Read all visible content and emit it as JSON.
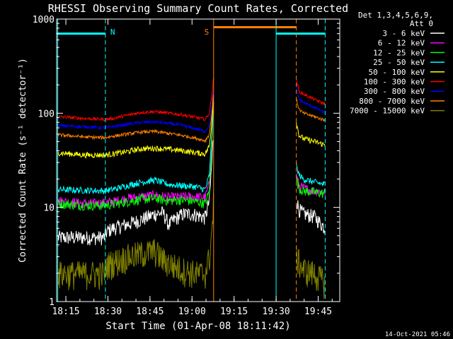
{
  "chart_data": {
    "type": "line",
    "title": "RHESSI Observing Summary Count Rates, Corrected",
    "xlabel": "Start Time (01-Apr-08 18:11:42)",
    "ylabel": "Corrected Count Rate (s⁻¹ detector⁻¹)",
    "ylim": [
      1,
      1000
    ],
    "yscale": "log",
    "xlim_minutes": [
      0,
      101
    ],
    "x_ticks": [
      {
        "t": 3.3,
        "label": "18:15"
      },
      {
        "t": 18.3,
        "label": "18:30"
      },
      {
        "t": 33.3,
        "label": "18:45"
      },
      {
        "t": 48.3,
        "label": "19:00"
      },
      {
        "t": 63.3,
        "label": "19:15"
      },
      {
        "t": 78.3,
        "label": "19:30"
      },
      {
        "t": 93.3,
        "label": "19:45"
      }
    ],
    "y_ticks": [
      {
        "v": 1,
        "label": "1"
      },
      {
        "v": 10,
        "label": "10"
      },
      {
        "v": 100,
        "label": "100"
      },
      {
        "v": 1000,
        "label": "1000"
      }
    ],
    "legend_header": [
      "Det 1,3,4,5,6,9,",
      "Att 0"
    ],
    "legend_position": "right",
    "annotations": [
      {
        "text": "N",
        "t": 20.0,
        "color": "#00ffff"
      },
      {
        "text": "S",
        "t": 53.5,
        "color": "#ff8000"
      }
    ],
    "flags": [
      {
        "name": "night",
        "color": "#00ffff",
        "level": 700,
        "intervals": [
          [
            0,
            17.4
          ],
          [
            78.3,
            95.8
          ]
        ]
      },
      {
        "name": "saa",
        "color": "#ff8000",
        "level": 820,
        "intervals": [
          [
            56.0,
            85.5
          ]
        ]
      }
    ],
    "vlines": [
      {
        "t": 0.4,
        "color": "#00ffff",
        "dashed": false
      },
      {
        "t": 17.4,
        "color": "#00ffff",
        "dashed": true
      },
      {
        "t": 56.0,
        "color": "#ff8000",
        "dashed": false
      },
      {
        "t": 78.3,
        "color": "#00ffff",
        "dashed": false
      },
      {
        "t": 85.5,
        "color": "#ff8000",
        "dashed": true
      },
      {
        "t": 95.8,
        "color": "#00ffff",
        "dashed": true
      }
    ],
    "series": [
      {
        "name": "3 - 6 keV",
        "color": "#ffffff",
        "seg1": [
          [
            0.5,
            4.8
          ],
          [
            17,
            4.8
          ],
          [
            18,
            5.6
          ],
          [
            20,
            6.0
          ],
          [
            25,
            6.6
          ],
          [
            30,
            7.4
          ],
          [
            35,
            8.5
          ],
          [
            38,
            8.8
          ],
          [
            40,
            6.5
          ],
          [
            42,
            7.5
          ],
          [
            45,
            8.5
          ],
          [
            48,
            8.6
          ],
          [
            50,
            8.3
          ],
          [
            53,
            7.8
          ],
          [
            54.5,
            12
          ],
          [
            55.5,
            35
          ],
          [
            56,
            60
          ]
        ],
        "seg2": [
          [
            85.5,
            12
          ],
          [
            86.5,
            9.5
          ],
          [
            88,
            8.6
          ],
          [
            92,
            8
          ],
          [
            95.8,
            6
          ]
        ]
      },
      {
        "name": "6 - 12 keV",
        "color": "#ff00ff",
        "seg1": [
          [
            0.5,
            11.8
          ],
          [
            10,
            11
          ],
          [
            17,
            11.2
          ],
          [
            20,
            11.5
          ],
          [
            25,
            12.5
          ],
          [
            30,
            13
          ],
          [
            35,
            13.5
          ],
          [
            40,
            12.8
          ],
          [
            45,
            13
          ],
          [
            50,
            13
          ],
          [
            53,
            12.8
          ],
          [
            54.5,
            18
          ],
          [
            55.5,
            60
          ],
          [
            56,
            170
          ]
        ],
        "seg2": [
          [
            85.5,
            22
          ],
          [
            86.5,
            17
          ],
          [
            88,
            16
          ],
          [
            92,
            15
          ],
          [
            95.8,
            14.5
          ]
        ]
      },
      {
        "name": "12 - 25 keV",
        "color": "#00ff00",
        "seg1": [
          [
            0.5,
            11
          ],
          [
            10,
            10.5
          ],
          [
            17,
            10.5
          ],
          [
            20,
            10.8
          ],
          [
            25,
            11.5
          ],
          [
            30,
            12.2
          ],
          [
            35,
            12.5
          ],
          [
            40,
            11.8
          ],
          [
            45,
            12
          ],
          [
            50,
            11.5
          ],
          [
            53,
            11
          ],
          [
            54.5,
            15
          ],
          [
            55.5,
            60
          ],
          [
            56,
            170
          ]
        ],
        "seg2": [
          [
            85.5,
            20
          ],
          [
            86.5,
            16
          ],
          [
            88,
            15
          ],
          [
            92,
            14.5
          ],
          [
            95.8,
            14
          ]
        ]
      },
      {
        "name": "25 - 50 keV",
        "color": "#00ffff",
        "seg1": [
          [
            0.5,
            15.5
          ],
          [
            10,
            15.2
          ],
          [
            17,
            15
          ],
          [
            20,
            15.5
          ],
          [
            25,
            17
          ],
          [
            30,
            18.5
          ],
          [
            35,
            19.5
          ],
          [
            40,
            17.5
          ],
          [
            45,
            17
          ],
          [
            50,
            16.5
          ],
          [
            53,
            15.5
          ],
          [
            54.5,
            22
          ],
          [
            55.5,
            70
          ],
          [
            56,
            150
          ]
        ],
        "seg2": [
          [
            85.5,
            28
          ],
          [
            86.5,
            22
          ],
          [
            88,
            20
          ],
          [
            92,
            18.5
          ],
          [
            95.8,
            17.5
          ]
        ]
      },
      {
        "name": "50 - 100 keV",
        "color": "#ffff00",
        "seg1": [
          [
            0.5,
            38
          ],
          [
            10,
            36
          ],
          [
            17,
            36
          ],
          [
            20,
            37
          ],
          [
            25,
            39
          ],
          [
            30,
            42
          ],
          [
            35,
            42.5
          ],
          [
            40,
            41.5
          ],
          [
            45,
            40
          ],
          [
            50,
            38
          ],
          [
            53,
            37
          ],
          [
            54.5,
            45
          ],
          [
            55.5,
            90
          ],
          [
            56,
            150
          ]
        ],
        "seg2": [
          [
            85.5,
            80
          ],
          [
            86.5,
            58
          ],
          [
            88,
            54
          ],
          [
            92,
            50
          ],
          [
            95.8,
            46
          ]
        ]
      },
      {
        "name": "100 - 300 keV",
        "color": "#ff0000",
        "seg1": [
          [
            0.5,
            92
          ],
          [
            10,
            88
          ],
          [
            17,
            86
          ],
          [
            20,
            88
          ],
          [
            25,
            95
          ],
          [
            30,
            102
          ],
          [
            35,
            104
          ],
          [
            40,
            100
          ],
          [
            45,
            96
          ],
          [
            50,
            90
          ],
          [
            53,
            86
          ],
          [
            54.5,
            100
          ],
          [
            55.5,
            170
          ],
          [
            56,
            240
          ]
        ],
        "seg2": [
          [
            85.5,
            230
          ],
          [
            86.5,
            170
          ],
          [
            88,
            160
          ],
          [
            92,
            140
          ],
          [
            95.8,
            125
          ]
        ]
      },
      {
        "name": "300 - 800 keV",
        "color": "#0000ff",
        "seg1": [
          [
            0.5,
            74
          ],
          [
            10,
            72
          ],
          [
            17,
            70
          ],
          [
            20,
            72
          ],
          [
            25,
            76
          ],
          [
            30,
            80
          ],
          [
            35,
            81
          ],
          [
            40,
            78
          ],
          [
            45,
            74
          ],
          [
            50,
            68
          ],
          [
            53,
            64
          ],
          [
            54.5,
            76
          ],
          [
            55.5,
            130
          ],
          [
            56,
            190
          ]
        ],
        "seg2": [
          [
            85.5,
            190
          ],
          [
            86.5,
            140
          ],
          [
            88,
            130
          ],
          [
            92,
            115
          ],
          [
            95.8,
            100
          ]
        ]
      },
      {
        "name": "800 - 7000 keV",
        "color": "#ff8000",
        "seg1": [
          [
            0.5,
            59
          ],
          [
            10,
            56
          ],
          [
            17,
            55
          ],
          [
            20,
            57
          ],
          [
            25,
            60
          ],
          [
            30,
            63
          ],
          [
            35,
            64
          ],
          [
            40,
            61
          ],
          [
            45,
            58
          ],
          [
            50,
            54
          ],
          [
            53,
            51
          ],
          [
            54.5,
            60
          ],
          [
            55.5,
            110
          ],
          [
            56,
            170
          ]
        ],
        "seg2": [
          [
            85.5,
            140
          ],
          [
            86.5,
            110
          ],
          [
            88,
            100
          ],
          [
            92,
            92
          ],
          [
            95.8,
            84
          ]
        ]
      },
      {
        "name": "7000 - 15000 keV",
        "color": "#808000",
        "seg1": [
          [
            0.5,
            2
          ],
          [
            17,
            2
          ],
          [
            18,
            2.5
          ],
          [
            25,
            3
          ],
          [
            35,
            3.5
          ],
          [
            38,
            2.8
          ],
          [
            42,
            2.4
          ],
          [
            45,
            2.2
          ],
          [
            50,
            2
          ],
          [
            53,
            2
          ],
          [
            54.5,
            3
          ],
          [
            55.5,
            6
          ],
          [
            56,
            12
          ]
        ],
        "seg2": [
          [
            85.5,
            3
          ],
          [
            88,
            2.2
          ],
          [
            92,
            2
          ],
          [
            95.8,
            1.6
          ]
        ]
      }
    ]
  },
  "footer": {
    "timestamp": "14-Oct-2021 05:46"
  }
}
